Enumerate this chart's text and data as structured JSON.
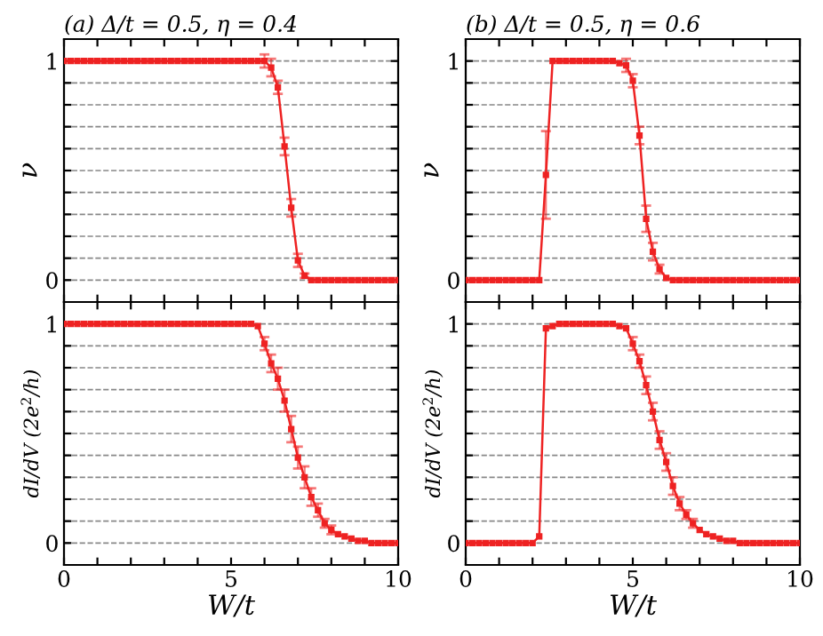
{
  "chart_data": [
    {
      "type": "line",
      "title": "(a) Δ/t = 0.5, η = 0.4",
      "ylabel": "ν",
      "marker": "square",
      "line_style": "solid",
      "grid": "y",
      "tick_labels": "y",
      "x": [
        0,
        0.2,
        0.4,
        0.6,
        0.8,
        1,
        1.2,
        1.4,
        1.6,
        1.8,
        2,
        2.2,
        2.4,
        2.6,
        2.8,
        3,
        3.2,
        3.4,
        3.6,
        3.8,
        4,
        4.2,
        4.4,
        4.6,
        4.8,
        5,
        5.2,
        5.4,
        5.6,
        5.8,
        6,
        6.2,
        6.4,
        6.6,
        6.8,
        7,
        7.2,
        7.4,
        7.6,
        7.8,
        8,
        8.2,
        8.4,
        8.6,
        8.8,
        9,
        9.2,
        9.4,
        9.6,
        9.8,
        10
      ],
      "series": [
        {
          "color": "#ee2222",
          "values": [
            1,
            1,
            1,
            1,
            1,
            1,
            1,
            1,
            1,
            1,
            1,
            1,
            1,
            1,
            1,
            1,
            1,
            1,
            1,
            1,
            1,
            1,
            1,
            1,
            1,
            1,
            1,
            1,
            1,
            1,
            1.0,
            0.97,
            0.88,
            0.61,
            0.33,
            0.09,
            0.02,
            0,
            0,
            0,
            0,
            0,
            0,
            0,
            0,
            0,
            0,
            0,
            0,
            0,
            0
          ],
          "errors": [
            null,
            null,
            null,
            null,
            null,
            null,
            null,
            null,
            null,
            null,
            null,
            null,
            null,
            null,
            null,
            null,
            null,
            null,
            null,
            null,
            null,
            null,
            null,
            null,
            null,
            null,
            null,
            null,
            null,
            null,
            0.03,
            0.04,
            0.03,
            0.04,
            0.04,
            0.03,
            0.01,
            null,
            null,
            null,
            null,
            null,
            null,
            null,
            null,
            null,
            null,
            null,
            null,
            null,
            null
          ]
        }
      ],
      "xlim": [
        0,
        10
      ],
      "xticks": [
        0,
        {
          "value": 1,
          "label": null
        },
        {
          "value": 2,
          "label": null
        },
        {
          "value": 3,
          "label": null
        },
        {
          "value": 4,
          "label": null
        },
        5,
        {
          "value": 6,
          "label": null
        },
        {
          "value": 7,
          "label": null
        },
        {
          "value": 8,
          "label": null
        },
        {
          "value": 9,
          "label": null
        },
        10
      ],
      "ylim": [
        -0.1,
        1.1
      ],
      "yticks": [
        0,
        {
          "value": 0.1,
          "label": null
        },
        {
          "value": 0.2,
          "label": null
        },
        {
          "value": 0.3,
          "label": null
        },
        {
          "value": 0.4,
          "label": null
        },
        {
          "value": 0.5,
          "label": null
        },
        {
          "value": 0.6,
          "label": null
        },
        {
          "value": 0.7,
          "label": null
        },
        {
          "value": 0.8,
          "label": null
        },
        {
          "value": 0.9,
          "label": null
        },
        1
      ]
    },
    {
      "type": "line",
      "title": "(b) Δ/t = 0.5, η = 0.6",
      "ylabel": "ν",
      "marker": "square",
      "line_style": "solid",
      "grid": "y",
      "tick_labels": "y",
      "x": [
        0,
        0.2,
        0.4,
        0.6,
        0.8,
        1,
        1.2,
        1.4,
        1.6,
        1.8,
        2,
        2.2,
        2.4,
        2.6,
        2.8,
        3,
        3.2,
        3.4,
        3.6,
        3.8,
        4,
        4.2,
        4.4,
        4.6,
        4.8,
        5,
        5.2,
        5.4,
        5.6,
        5.8,
        6,
        6.2,
        6.4,
        6.6,
        6.8,
        7,
        7.2,
        7.4,
        7.6,
        7.8,
        8,
        8.2,
        8.4,
        8.6,
        8.8,
        9,
        9.2,
        9.4,
        9.6,
        9.8,
        10
      ],
      "series": [
        {
          "color": "#ee2222",
          "values": [
            0,
            0,
            0,
            0,
            0,
            0,
            0,
            0,
            0,
            0,
            0,
            0,
            0.48,
            1,
            1,
            1,
            1,
            1,
            1,
            1,
            1,
            1,
            1,
            0.99,
            0.98,
            0.91,
            0.66,
            0.28,
            0.13,
            0.05,
            0.01,
            0,
            0,
            0,
            0,
            0,
            0,
            0,
            0,
            0,
            0,
            0,
            0,
            0,
            0,
            0,
            0,
            0,
            0,
            0,
            0
          ],
          "errors": [
            null,
            null,
            null,
            null,
            null,
            null,
            null,
            null,
            null,
            null,
            null,
            null,
            0.2,
            null,
            null,
            null,
            null,
            null,
            null,
            null,
            null,
            null,
            null,
            null,
            0.03,
            0.03,
            0.04,
            0.06,
            0.04,
            0.02,
            null,
            null,
            null,
            null,
            null,
            null,
            null,
            null,
            null,
            null,
            null,
            null,
            null,
            null,
            null,
            null,
            null,
            null,
            null,
            null,
            null
          ]
        }
      ],
      "xlim": [
        0,
        10
      ],
      "xticks": [
        0,
        {
          "value": 1,
          "label": null
        },
        {
          "value": 2,
          "label": null
        },
        {
          "value": 3,
          "label": null
        },
        {
          "value": 4,
          "label": null
        },
        5,
        {
          "value": 6,
          "label": null
        },
        {
          "value": 7,
          "label": null
        },
        {
          "value": 8,
          "label": null
        },
        {
          "value": 9,
          "label": null
        },
        10
      ],
      "ylim": [
        -0.1,
        1.1
      ],
      "yticks": [
        0,
        {
          "value": 0.1,
          "label": null
        },
        {
          "value": 0.2,
          "label": null
        },
        {
          "value": 0.3,
          "label": null
        },
        {
          "value": 0.4,
          "label": null
        },
        {
          "value": 0.5,
          "label": null
        },
        {
          "value": 0.6,
          "label": null
        },
        {
          "value": 0.7,
          "label": null
        },
        {
          "value": 0.8,
          "label": null
        },
        {
          "value": 0.9,
          "label": null
        },
        1
      ]
    },
    {
      "type": "line",
      "xlabel": "W/t",
      "ylabel": "dI/dV (2e$^{2}$/h)",
      "marker": "square",
      "line_style": "solid",
      "grid": "y",
      "x": [
        0,
        0.2,
        0.4,
        0.6,
        0.8,
        1,
        1.2,
        1.4,
        1.6,
        1.8,
        2,
        2.2,
        2.4,
        2.6,
        2.8,
        3,
        3.2,
        3.4,
        3.6,
        3.8,
        4,
        4.2,
        4.4,
        4.6,
        4.8,
        5,
        5.2,
        5.4,
        5.6,
        5.8,
        6,
        6.2,
        6.4,
        6.6,
        6.8,
        7,
        7.2,
        7.4,
        7.6,
        7.8,
        8,
        8.2,
        8.4,
        8.6,
        8.8,
        9,
        9.2,
        9.4,
        9.6,
        9.8,
        10
      ],
      "series": [
        {
          "color": "#ee2222",
          "values": [
            1,
            1,
            1,
            1,
            1,
            1,
            1,
            1,
            1,
            1,
            1,
            1,
            1,
            1,
            1,
            1,
            1,
            1,
            1,
            1,
            1,
            1,
            1,
            1,
            1,
            1,
            1,
            1,
            1,
            0.99,
            0.91,
            0.82,
            0.75,
            0.65,
            0.52,
            0.39,
            0.3,
            0.21,
            0.15,
            0.09,
            0.06,
            0.04,
            0.03,
            0.02,
            0.01,
            0.01,
            0,
            0,
            0,
            0,
            0
          ],
          "errors": [
            null,
            null,
            null,
            null,
            null,
            null,
            null,
            null,
            null,
            null,
            null,
            null,
            null,
            null,
            null,
            null,
            null,
            null,
            null,
            null,
            null,
            null,
            null,
            null,
            null,
            null,
            null,
            null,
            null,
            null,
            0.03,
            0.04,
            0.05,
            0.05,
            0.06,
            0.05,
            0.05,
            0.04,
            0.03,
            0.02,
            0.02,
            null,
            null,
            null,
            null,
            null,
            null,
            null,
            null,
            null,
            null
          ]
        }
      ],
      "xlim": [
        0,
        10
      ],
      "xticks": [
        0,
        {
          "value": 1,
          "label": null
        },
        {
          "value": 2,
          "label": null
        },
        {
          "value": 3,
          "label": null
        },
        {
          "value": 4,
          "label": null
        },
        5,
        {
          "value": 6,
          "label": null
        },
        {
          "value": 7,
          "label": null
        },
        {
          "value": 8,
          "label": null
        },
        {
          "value": 9,
          "label": null
        },
        10
      ],
      "ylim": [
        -0.1,
        1.1
      ],
      "yticks": [
        0,
        {
          "value": 0.1,
          "label": null
        },
        {
          "value": 0.2,
          "label": null
        },
        {
          "value": 0.3,
          "label": null
        },
        {
          "value": 0.4,
          "label": null
        },
        {
          "value": 0.5,
          "label": null
        },
        {
          "value": 0.6,
          "label": null
        },
        {
          "value": 0.7,
          "label": null
        },
        {
          "value": 0.8,
          "label": null
        },
        {
          "value": 0.9,
          "label": null
        },
        1
      ]
    },
    {
      "type": "line",
      "xlabel": "W/t",
      "ylabel": "dI/dV (2e$^{2}$/h)",
      "marker": "square",
      "line_style": "solid",
      "grid": "y",
      "x": [
        0,
        0.2,
        0.4,
        0.6,
        0.8,
        1,
        1.2,
        1.4,
        1.6,
        1.8,
        2,
        2.2,
        2.4,
        2.6,
        2.8,
        3,
        3.2,
        3.4,
        3.6,
        3.8,
        4,
        4.2,
        4.4,
        4.6,
        4.8,
        5,
        5.2,
        5.4,
        5.6,
        5.8,
        6,
        6.2,
        6.4,
        6.6,
        6.8,
        7,
        7.2,
        7.4,
        7.6,
        7.8,
        8,
        8.2,
        8.4,
        8.6,
        8.8,
        9,
        9.2,
        9.4,
        9.6,
        9.8,
        10
      ],
      "series": [
        {
          "color": "#ee2222",
          "values": [
            0,
            0,
            0,
            0,
            0,
            0,
            0,
            0,
            0,
            0,
            0,
            0.03,
            0.98,
            0.99,
            1,
            1,
            1,
            1,
            1,
            1,
            1,
            1,
            1,
            0.99,
            0.98,
            0.91,
            0.83,
            0.72,
            0.6,
            0.47,
            0.37,
            0.26,
            0.18,
            0.13,
            0.09,
            0.06,
            0.04,
            0.03,
            0.02,
            0.01,
            0.01,
            0,
            0,
            0,
            0,
            0,
            0,
            0,
            0,
            0,
            0
          ],
          "errors": [
            null,
            null,
            null,
            null,
            null,
            null,
            null,
            null,
            null,
            null,
            null,
            null,
            null,
            null,
            null,
            null,
            null,
            null,
            null,
            null,
            null,
            null,
            null,
            null,
            null,
            0.03,
            0.03,
            0.04,
            0.04,
            0.04,
            0.04,
            0.04,
            0.03,
            0.02,
            0.02,
            null,
            null,
            null,
            null,
            null,
            null,
            null,
            null,
            null,
            null,
            null,
            null,
            null,
            null,
            null,
            null
          ]
        }
      ],
      "xlim": [
        0,
        10
      ],
      "xticks": [
        0,
        {
          "value": 1,
          "label": null
        },
        {
          "value": 2,
          "label": null
        },
        {
          "value": 3,
          "label": null
        },
        {
          "value": 4,
          "label": null
        },
        5,
        {
          "value": 6,
          "label": null
        },
        {
          "value": 7,
          "label": null
        },
        {
          "value": 8,
          "label": null
        },
        {
          "value": 9,
          "label": null
        },
        10
      ],
      "ylim": [
        -0.1,
        1.1
      ],
      "yticks": [
        0,
        {
          "value": 0.1,
          "label": null
        },
        {
          "value": 0.2,
          "label": null
        },
        {
          "value": 0.3,
          "label": null
        },
        {
          "value": 0.4,
          "label": null
        },
        {
          "value": 0.5,
          "label": null
        },
        {
          "value": 0.6,
          "label": null
        },
        {
          "value": 0.7,
          "label": null
        },
        {
          "value": 0.8,
          "label": null
        },
        {
          "value": 0.9,
          "label": null
        },
        1
      ]
    }
  ]
}
